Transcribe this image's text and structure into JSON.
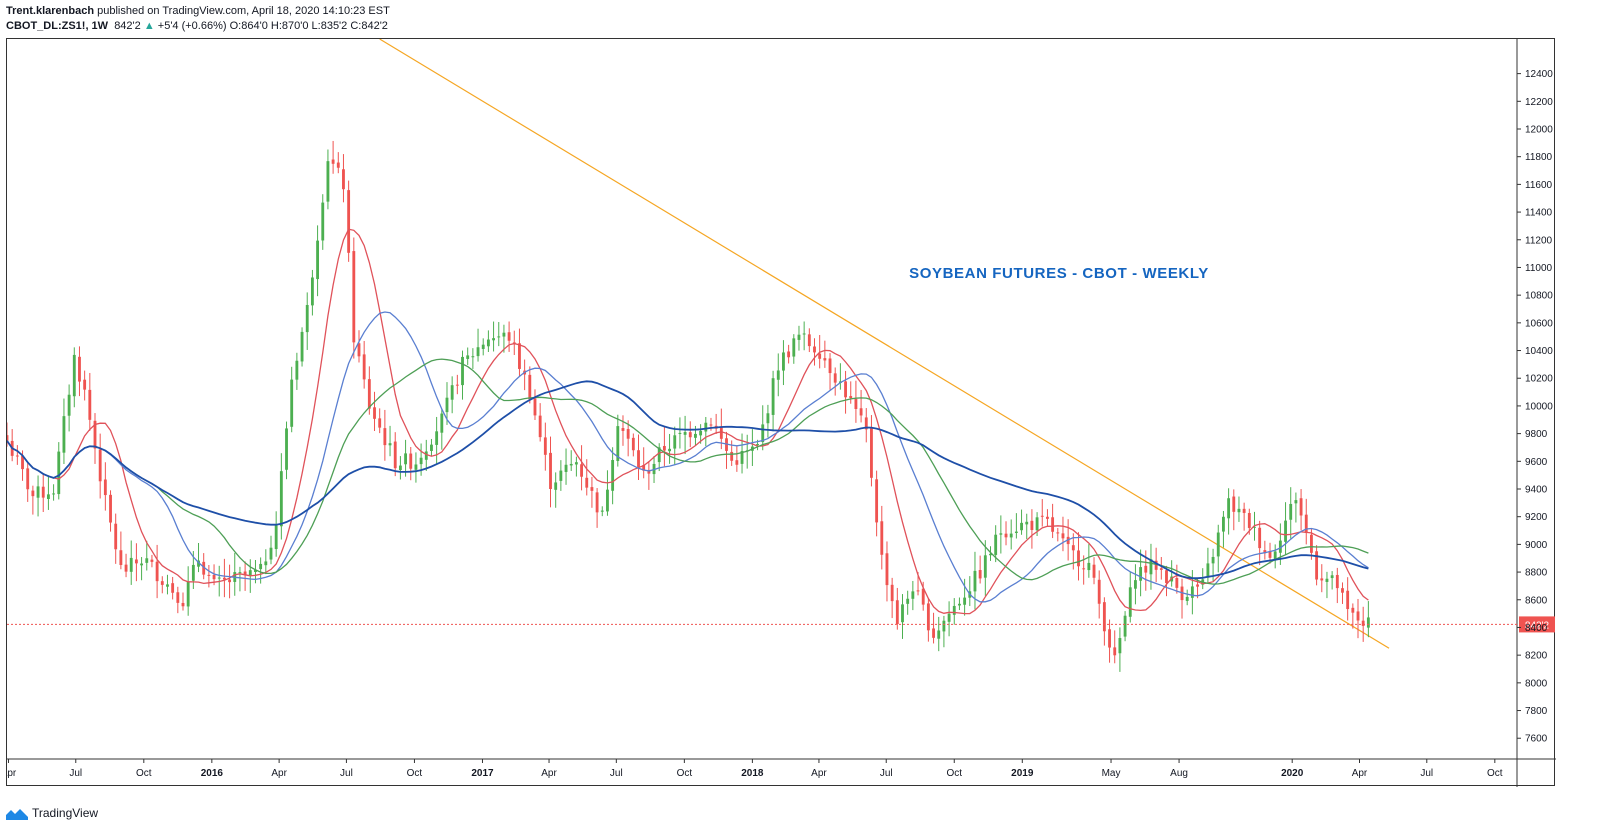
{
  "header": {
    "publisher": "Trent.klarenbach",
    "published_text": "published on TradingView.com, April 18, 2020 14:10:23 EST",
    "symbol": "CBOT_DL:ZS1!, 1W",
    "last": "842'2",
    "arrow": "▲",
    "change": "+5'4 (+0.66%)",
    "o_label": "O:",
    "o_val": "864'0",
    "h_label": "H:",
    "h_val": "870'0",
    "l_label": "L:",
    "l_val": "835'2",
    "c_label": "C:",
    "c_val": "842'2"
  },
  "footer": {
    "brand": "TradingView"
  },
  "chart_data": {
    "type": "candlestick",
    "title": "SOYBEAN FUTURES - CBOT - WEEKLY",
    "colors": {
      "up": "#4caf50",
      "down": "#ef5350",
      "ma_blue_long": "#1e4fa8",
      "ma_red": "#e0525a",
      "ma_blue": "#5a7fd1",
      "ma_green": "#4e9f56",
      "trendline": "#f5a623",
      "price_line": "#ef5350",
      "title": "#1565c0",
      "price_tag": "#ef5350"
    },
    "ylim": [
      7450,
      12650
    ],
    "y_ticks": [
      7600,
      7800,
      8000,
      8200,
      8400,
      8600,
      8800,
      9000,
      9200,
      9400,
      9600,
      9800,
      10000,
      10200,
      10400,
      10600,
      10800,
      11000,
      11200,
      11400,
      11600,
      11800,
      12000,
      12200,
      12400
    ],
    "y_tick_labels": [
      "7600",
      "7800",
      "8000",
      "8200",
      "8400",
      "8600",
      "8800",
      "9000",
      "9200",
      "9400",
      "9600",
      "9800",
      "10000",
      "10200",
      "10400",
      "10600",
      "10800",
      "11000",
      "11200",
      "11400",
      "11600",
      "11800",
      "12000",
      "12200",
      "12400"
    ],
    "x_range": [
      "2015-03-30",
      "2020-10-31"
    ],
    "x_ticks": [
      {
        "date": "2015-04-01",
        "label": "Apr",
        "bold": false
      },
      {
        "date": "2015-07-01",
        "label": "Jul",
        "bold": false
      },
      {
        "date": "2015-10-01",
        "label": "Oct",
        "bold": false
      },
      {
        "date": "2016-01-01",
        "label": "2016",
        "bold": true
      },
      {
        "date": "2016-04-01",
        "label": "Apr",
        "bold": false
      },
      {
        "date": "2016-07-01",
        "label": "Jul",
        "bold": false
      },
      {
        "date": "2016-10-01",
        "label": "Oct",
        "bold": false
      },
      {
        "date": "2017-01-01",
        "label": "2017",
        "bold": true
      },
      {
        "date": "2017-04-01",
        "label": "Apr",
        "bold": false
      },
      {
        "date": "2017-07-01",
        "label": "Jul",
        "bold": false
      },
      {
        "date": "2017-10-01",
        "label": "Oct",
        "bold": false
      },
      {
        "date": "2018-01-01",
        "label": "2018",
        "bold": true
      },
      {
        "date": "2018-04-01",
        "label": "Apr",
        "bold": false
      },
      {
        "date": "2018-07-01",
        "label": "Jul",
        "bold": false
      },
      {
        "date": "2018-10-01",
        "label": "Oct",
        "bold": false
      },
      {
        "date": "2019-01-01",
        "label": "2019",
        "bold": true
      },
      {
        "date": "2019-05-01",
        "label": "May",
        "bold": false
      },
      {
        "date": "2019-08-01",
        "label": "Aug",
        "bold": false
      },
      {
        "date": "2020-01-01",
        "label": "2020",
        "bold": true
      },
      {
        "date": "2020-04-01",
        "label": "Apr",
        "bold": false
      },
      {
        "date": "2020-07-01",
        "label": "Jul",
        "bold": false
      },
      {
        "date": "2020-10-01",
        "label": "Oct",
        "bold": false
      }
    ],
    "last_price": 8422,
    "last_price_label": "842'2",
    "closes": [
      {
        "date": "2015-03-30",
        "close": 9750
      },
      {
        "date": "2015-05-04",
        "close": 9350
      },
      {
        "date": "2015-06-01",
        "close": 9400
      },
      {
        "date": "2015-06-29",
        "close": 10350
      },
      {
        "date": "2015-07-13",
        "close": 10100
      },
      {
        "date": "2015-08-10",
        "close": 9300
      },
      {
        "date": "2015-09-01",
        "close": 8800
      },
      {
        "date": "2015-10-01",
        "close": 8900
      },
      {
        "date": "2015-10-26",
        "close": 8750
      },
      {
        "date": "2015-11-23",
        "close": 8600
      },
      {
        "date": "2015-12-14",
        "close": 8900
      },
      {
        "date": "2016-01-04",
        "close": 8700
      },
      {
        "date": "2016-02-01",
        "close": 8750
      },
      {
        "date": "2016-03-07",
        "close": 8800
      },
      {
        "date": "2016-03-28",
        "close": 9150
      },
      {
        "date": "2016-04-18",
        "close": 10200
      },
      {
        "date": "2016-05-09",
        "close": 10700
      },
      {
        "date": "2016-06-06",
        "close": 11800
      },
      {
        "date": "2016-06-27",
        "close": 11600
      },
      {
        "date": "2016-07-11",
        "close": 10500
      },
      {
        "date": "2016-08-01",
        "close": 10000
      },
      {
        "date": "2016-09-05",
        "close": 9600
      },
      {
        "date": "2016-10-03",
        "close": 9600
      },
      {
        "date": "2016-11-07",
        "close": 9900
      },
      {
        "date": "2016-12-05",
        "close": 10300
      },
      {
        "date": "2017-01-09",
        "close": 10500
      },
      {
        "date": "2017-02-06",
        "close": 10500
      },
      {
        "date": "2017-03-06",
        "close": 10100
      },
      {
        "date": "2017-04-03",
        "close": 9450
      },
      {
        "date": "2017-05-08",
        "close": 9600
      },
      {
        "date": "2017-06-12",
        "close": 9200
      },
      {
        "date": "2017-07-03",
        "close": 9900
      },
      {
        "date": "2017-08-07",
        "close": 9500
      },
      {
        "date": "2017-09-04",
        "close": 9700
      },
      {
        "date": "2017-10-02",
        "close": 9800
      },
      {
        "date": "2017-11-06",
        "close": 9900
      },
      {
        "date": "2017-12-04",
        "close": 9600
      },
      {
        "date": "2018-01-08",
        "close": 9700
      },
      {
        "date": "2018-02-05",
        "close": 10300
      },
      {
        "date": "2018-03-05",
        "close": 10500
      },
      {
        "date": "2018-04-02",
        "close": 10400
      },
      {
        "date": "2018-05-07",
        "close": 10100
      },
      {
        "date": "2018-06-04",
        "close": 9800
      },
      {
        "date": "2018-06-25",
        "close": 8900
      },
      {
        "date": "2018-07-16",
        "close": 8450
      },
      {
        "date": "2018-08-06",
        "close": 8700
      },
      {
        "date": "2018-09-03",
        "close": 8350
      },
      {
        "date": "2018-10-08",
        "close": 8600
      },
      {
        "date": "2018-11-05",
        "close": 8800
      },
      {
        "date": "2018-12-03",
        "close": 9100
      },
      {
        "date": "2019-01-07",
        "close": 9150
      },
      {
        "date": "2019-02-04",
        "close": 9150
      },
      {
        "date": "2019-03-04",
        "close": 8950
      },
      {
        "date": "2019-04-01",
        "close": 8850
      },
      {
        "date": "2019-05-06",
        "close": 8150
      },
      {
        "date": "2019-06-03",
        "close": 8800
      },
      {
        "date": "2019-07-01",
        "close": 8850
      },
      {
        "date": "2019-08-05",
        "close": 8650
      },
      {
        "date": "2019-09-02",
        "close": 8700
      },
      {
        "date": "2019-10-07",
        "close": 9300
      },
      {
        "date": "2019-11-04",
        "close": 9150
      },
      {
        "date": "2019-12-02",
        "close": 8900
      },
      {
        "date": "2020-01-06",
        "close": 9350
      },
      {
        "date": "2020-02-03",
        "close": 8800
      },
      {
        "date": "2020-03-02",
        "close": 8700
      },
      {
        "date": "2020-03-16",
        "close": 8500
      },
      {
        "date": "2020-04-13",
        "close": 8422
      }
    ],
    "trendline": [
      {
        "date": "2016-08-15",
        "value": 12650
      },
      {
        "date": "2020-05-11",
        "value": 8250
      }
    ],
    "annotations": []
  }
}
